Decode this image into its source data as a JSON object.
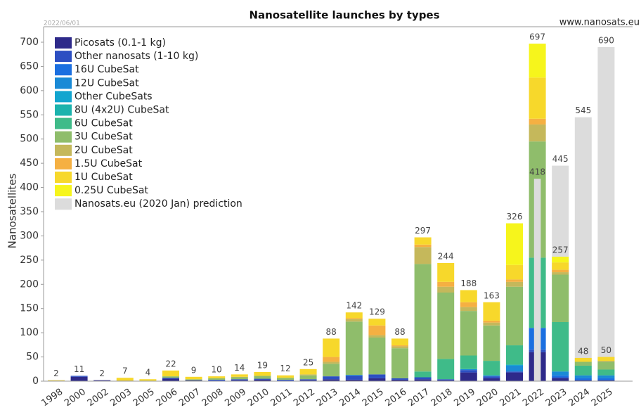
{
  "chart_data": {
    "type": "stacked_bar",
    "title": "Nanosatellite launches by types",
    "date": "2022/06/01",
    "source": "www.nanosats.eu",
    "y_label": "Nanosatellites",
    "categories": [
      "1998",
      "2000",
      "2002",
      "2003",
      "2005",
      "2006",
      "2007",
      "2008",
      "2009",
      "2010",
      "2011",
      "2012",
      "2013",
      "2014",
      "2015",
      "2016",
      "2017",
      "2018",
      "2019",
      "2020",
      "2021",
      "2022",
      "2023",
      "2024",
      "2025"
    ],
    "series": [
      {
        "name": "Picosats (0.1-1 kg)",
        "color": "#2e2a8a",
        "values": [
          1,
          9,
          2,
          1,
          0,
          5,
          2,
          1,
          2,
          3,
          1,
          2,
          4,
          3,
          6,
          3,
          4,
          2,
          18,
          6,
          18,
          60,
          6,
          2,
          2
        ]
      },
      {
        "name": "Other nanosats (1-10 kg)",
        "color": "#2c4fc2",
        "values": [
          0,
          2,
          0,
          0,
          0,
          2,
          0,
          2,
          2,
          2,
          2,
          2,
          6,
          9,
          8,
          3,
          4,
          2,
          5,
          4,
          2,
          5,
          2,
          0,
          0
        ]
      },
      {
        "name": "16U CubeSat",
        "color": "#1b6fe0",
        "values": [
          0,
          0,
          0,
          0,
          0,
          0,
          0,
          0,
          0,
          0,
          0,
          0,
          0,
          0,
          0,
          0,
          0,
          0,
          0,
          0,
          0,
          45,
          4,
          4,
          4
        ]
      },
      {
        "name": "12U CubeSat",
        "color": "#1a8ad6",
        "values": [
          0,
          0,
          0,
          0,
          0,
          0,
          0,
          0,
          0,
          0,
          0,
          0,
          0,
          0,
          0,
          0,
          0,
          0,
          2,
          2,
          12,
          0,
          8,
          6,
          6
        ]
      },
      {
        "name": "Other CubeSats",
        "color": "#12a5cf",
        "values": [
          0,
          0,
          0,
          0,
          0,
          0,
          0,
          0,
          0,
          0,
          0,
          0,
          0,
          1,
          0,
          0,
          0,
          0,
          0,
          0,
          2,
          0,
          0,
          0,
          0
        ]
      },
      {
        "name": "8U (4x2U) CubeSat",
        "color": "#1bb3ad",
        "values": [
          0,
          0,
          0,
          0,
          0,
          0,
          0,
          0,
          0,
          0,
          0,
          0,
          0,
          0,
          0,
          0,
          0,
          0,
          0,
          0,
          0,
          0,
          0,
          0,
          0
        ]
      },
      {
        "name": "6U CubeSat",
        "color": "#3fbb89",
        "values": [
          0,
          0,
          0,
          0,
          0,
          0,
          0,
          0,
          0,
          0,
          0,
          0,
          0,
          0,
          0,
          0,
          12,
          42,
          28,
          30,
          40,
          145,
          102,
          20,
          12
        ]
      },
      {
        "name": "3U CubeSat",
        "color": "#8fbd6b",
        "values": [
          0,
          0,
          0,
          0,
          1,
          3,
          2,
          3,
          4,
          6,
          4,
          8,
          26,
          110,
          76,
          62,
          222,
          137,
          92,
          73,
          121,
          240,
          98,
          8,
          16
        ]
      },
      {
        "name": "2U CubeSat",
        "color": "#c5b85b",
        "values": [
          0,
          0,
          0,
          0,
          0,
          0,
          0,
          0,
          1,
          0,
          0,
          2,
          4,
          5,
          5,
          4,
          35,
          12,
          8,
          6,
          10,
          35,
          5,
          0,
          2
        ]
      },
      {
        "name": "1.5U CubeSat",
        "color": "#f5b042",
        "values": [
          0,
          0,
          0,
          0,
          0,
          0,
          0,
          0,
          0,
          0,
          0,
          0,
          10,
          2,
          20,
          2,
          5,
          10,
          10,
          4,
          5,
          12,
          5,
          0,
          0
        ]
      },
      {
        "name": "1U CubeSat",
        "color": "#f7d82b",
        "values": [
          1,
          0,
          0,
          6,
          3,
          12,
          5,
          4,
          5,
          8,
          5,
          11,
          38,
          12,
          14,
          14,
          15,
          39,
          25,
          38,
          30,
          85,
          15,
          8,
          8
        ]
      },
      {
        "name": "0.25U CubeSat",
        "color": "#f6f51c",
        "values": [
          0,
          0,
          0,
          0,
          0,
          0,
          0,
          0,
          0,
          0,
          0,
          0,
          0,
          0,
          0,
          0,
          0,
          0,
          0,
          0,
          86,
          70,
          12,
          0,
          0
        ]
      }
    ],
    "totals": [
      2,
      11,
      2,
      7,
      4,
      22,
      9,
      10,
      14,
      19,
      12,
      25,
      88,
      142,
      129,
      88,
      297,
      244,
      188,
      163,
      326,
      697,
      257,
      48,
      50
    ],
    "prediction": {
      "name": "Nanosats.eu (2020 Jan) prediction",
      "color": "#dcdcdc",
      "values": [
        null,
        null,
        null,
        null,
        null,
        null,
        null,
        null,
        null,
        null,
        null,
        null,
        null,
        null,
        null,
        null,
        null,
        null,
        null,
        null,
        null,
        418,
        445,
        545,
        690
      ]
    },
    "ylim": [
      0,
      700
    ],
    "yticks": [
      0,
      50,
      100,
      150,
      200,
      250,
      300,
      350,
      400,
      450,
      500,
      550,
      600,
      650,
      700
    ],
    "legend": "top-left"
  }
}
